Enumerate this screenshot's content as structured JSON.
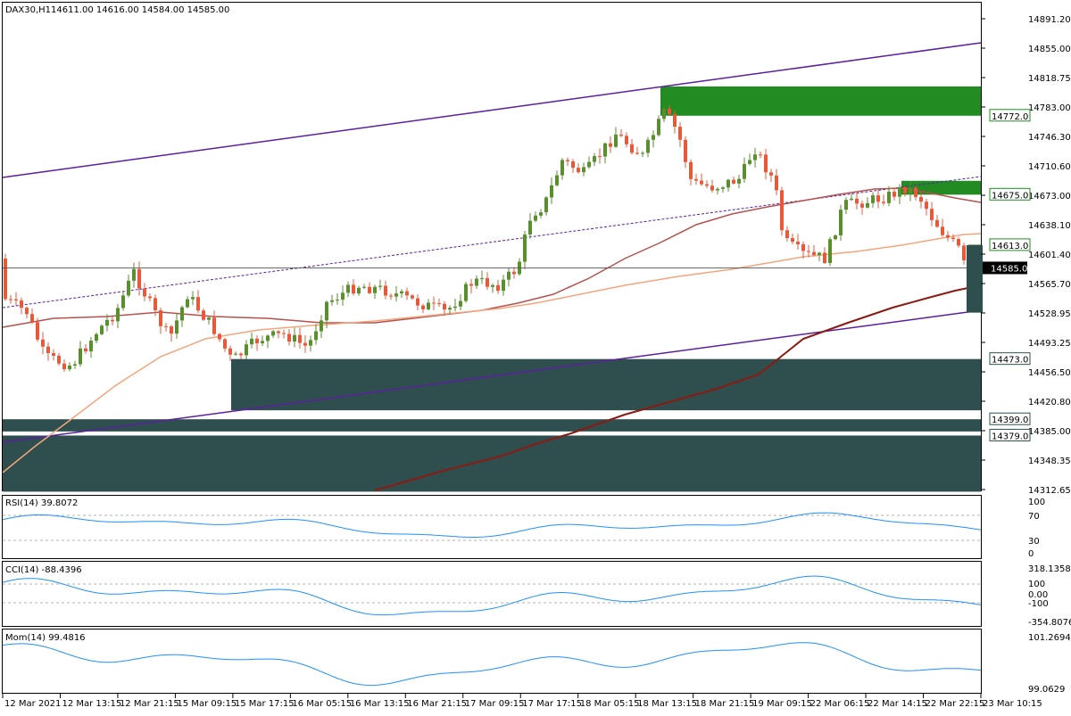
{
  "header": {
    "symbol": "DAX30,H1",
    "ohlc": "14611.00 14616.00 14584.00 14585.00"
  },
  "colors": {
    "bull": "#5a8f2e",
    "bear": "#e8593a",
    "channel": "#5b1fa0",
    "ma_fast": "#b5524e",
    "ma_mid": "#f4a57c",
    "ma_slow": "#8b1a12",
    "zone_dark": "#2f4f4f",
    "zone_green": "#228b22",
    "indicator": "#1e90ff",
    "current_line": "#555555"
  },
  "price_axis": {
    "ticks": [
      "14891.20",
      "14855.00",
      "14818.75",
      "14783.00",
      "14746.30",
      "14710.60",
      "14673.00",
      "14638.10",
      "14601.40",
      "14565.70",
      "14528.95",
      "14493.25",
      "14456.50",
      "14420.80",
      "14385.00",
      "14348.35",
      "14312.65"
    ],
    "current_price": "14585.00",
    "level_tags": [
      "14772.0",
      "14675.0",
      "14613.0",
      "14473.0",
      "14399.0",
      "14379.0"
    ]
  },
  "time_axis": {
    "labels": [
      "12 Mar 2021",
      "12 Mar 13:15",
      "12 Mar 21:15",
      "15 Mar 09:15",
      "15 Mar 17:15",
      "16 Mar 05:15",
      "16 Mar 13:15",
      "16 Mar 21:15",
      "17 Mar 09:15",
      "17 Mar 17:15",
      "18 Mar 05:15",
      "18 Mar 13:15",
      "18 Mar 21:15",
      "19 Mar 09:15",
      "22 Mar 06:15",
      "22 Mar 14:15",
      "22 Mar 22:15",
      "23 Mar 10:15"
    ]
  },
  "indicators": {
    "rsi": {
      "label": "RSI(14) 39.8072",
      "levels": [
        "70",
        "30",
        "0"
      ],
      "top": "100"
    },
    "cci": {
      "label": "CCI(14) -88.4396",
      "levels": [
        "318.1358",
        "100",
        "0.00",
        "-100",
        "-354.8076"
      ]
    },
    "mom": {
      "label": "Mom(14) 99.4816",
      "levels": [
        "101.2694",
        "99.0629"
      ]
    }
  },
  "chart_data": {
    "type": "candlestick",
    "title": "DAX30,H1",
    "ylim": [
      14300,
      14910
    ],
    "series": [
      {
        "name": "candles",
        "style": "candles"
      },
      {
        "name": "",
        "style": "line",
        "color_key": "ma_fast"
      },
      {
        "name": "",
        "style": "line",
        "color_key": "ma_mid"
      },
      {
        "name": "",
        "style": "line",
        "color_key": "ma_slow"
      }
    ],
    "zones": [
      {
        "from": 14772,
        "to": 14808,
        "color_key": "zone_green"
      },
      {
        "from": 14675,
        "to": 14692,
        "color_key": "zone_green"
      },
      {
        "from": 14410,
        "to": 14473,
        "color_key": "zone_dark"
      },
      {
        "from": 14384,
        "to": 14399,
        "color_key": "zone_dark"
      },
      {
        "from": 14310,
        "to": 14379,
        "color_key": "zone_dark"
      }
    ],
    "levels": [
      14772,
      14675,
      14613,
      14473,
      14399,
      14379,
      14585
    ]
  }
}
